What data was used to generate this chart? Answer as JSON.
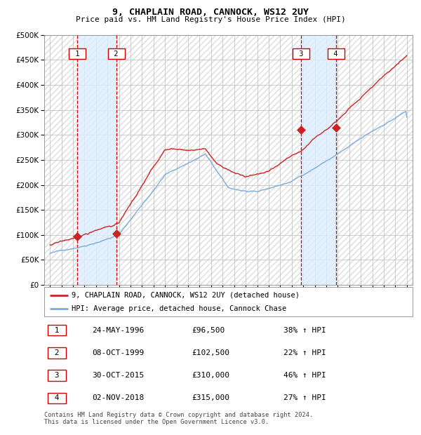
{
  "title": "9, CHAPLAIN ROAD, CANNOCK, WS12 2UY",
  "subtitle": "Price paid vs. HM Land Registry's House Price Index (HPI)",
  "ytick_values": [
    0,
    50000,
    100000,
    150000,
    200000,
    250000,
    300000,
    350000,
    400000,
    450000,
    500000
  ],
  "xlim_years": [
    1993.5,
    2025.5
  ],
  "ylim": [
    0,
    500000
  ],
  "transactions": [
    {
      "num": 1,
      "date": "24-MAY-1996",
      "year": 1996.38,
      "price": 96500,
      "pct": "38%",
      "dir": "↑"
    },
    {
      "num": 2,
      "date": "08-OCT-1999",
      "year": 1999.77,
      "price": 102500,
      "pct": "22%",
      "dir": "↑"
    },
    {
      "num": 3,
      "date": "30-OCT-2015",
      "year": 2015.83,
      "price": 310000,
      "pct": "46%",
      "dir": "↑"
    },
    {
      "num": 4,
      "date": "02-NOV-2018",
      "year": 2018.84,
      "price": 315000,
      "pct": "27%",
      "dir": "↑"
    }
  ],
  "hpi_color": "#7aaddc",
  "sold_color": "#cc2222",
  "point_color": "#cc2222",
  "vline_color": "#cc0000",
  "shade_color": "#ddeeff",
  "grid_color": "#bbbbbb",
  "legend_line1": "9, CHAPLAIN ROAD, CANNOCK, WS12 2UY (detached house)",
  "legend_line2": "HPI: Average price, detached house, Cannock Chase",
  "footer1": "Contains HM Land Registry data © Crown copyright and database right 2024.",
  "footer2": "This data is licensed under the Open Government Licence v3.0.",
  "table_rows": [
    [
      "1",
      "24-MAY-1996",
      "£96,500",
      "38% ↑ HPI"
    ],
    [
      "2",
      "08-OCT-1999",
      "£102,500",
      "22% ↑ HPI"
    ],
    [
      "3",
      "30-OCT-2015",
      "£310,000",
      "46% ↑ HPI"
    ],
    [
      "4",
      "02-NOV-2018",
      "£315,000",
      "27% ↑ HPI"
    ]
  ]
}
